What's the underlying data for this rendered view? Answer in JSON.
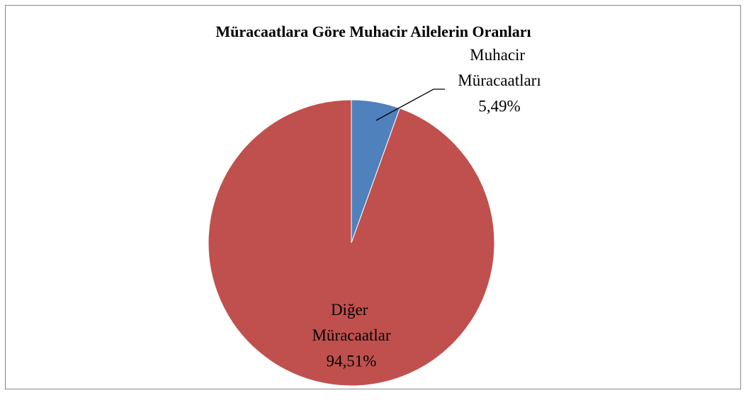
{
  "chart_data": {
    "type": "pie",
    "title": "Müracaatlara Göre Muhacir Ailelerin Oranları",
    "categories": [
      "Muhacir Müracaatları",
      "Diğer Müracaatlar"
    ],
    "values": [
      5.49,
      94.51
    ],
    "value_labels": [
      "5,49%",
      "94,51%"
    ],
    "colors": [
      "#4f81bd",
      "#c0504d"
    ]
  }
}
